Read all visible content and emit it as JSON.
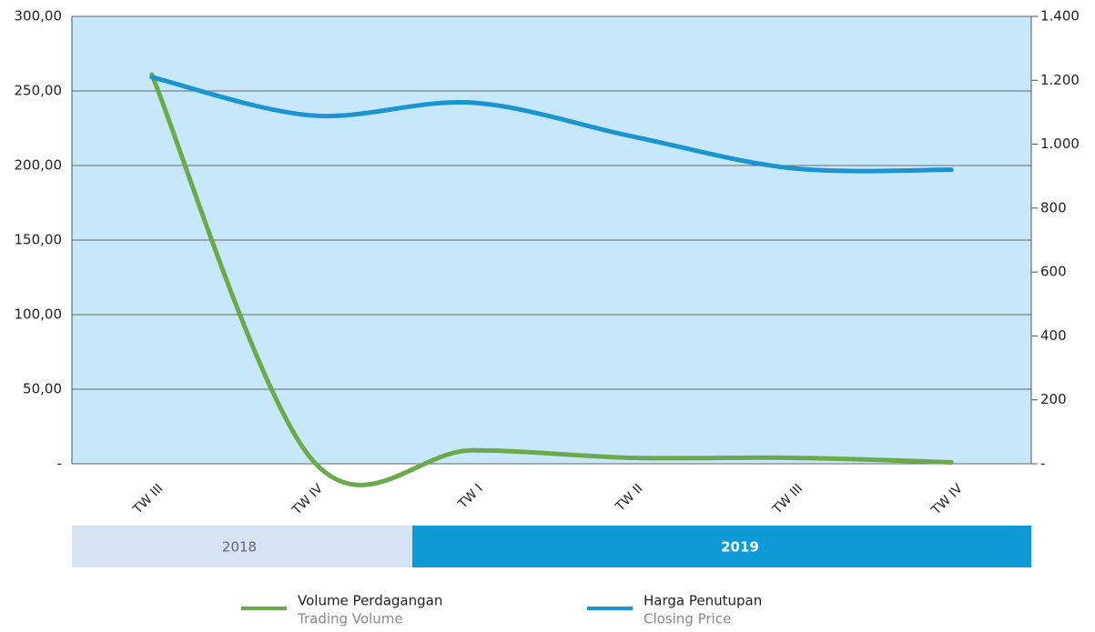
{
  "chart_data": {
    "type": "line",
    "categories": [
      "TW III",
      "TW IV",
      "TW I",
      "TW II",
      "TW III",
      "TW IV"
    ],
    "series": [
      {
        "name": "Volume Perdagangan",
        "name_en": "Trading Volume",
        "color": "#6aaa4a",
        "values": [
          261,
          3,
          9,
          4,
          4,
          1
        ]
      },
      {
        "name": "Harga Penutupan",
        "name_en": "Closing Price",
        "color": "#1b95d2",
        "axis": "y2",
        "values": [
          1210,
          1090,
          1130,
          1025,
          925,
          920
        ]
      }
    ],
    "ylim": [
      0,
      300
    ],
    "yticks": [
      {
        "value": 0,
        "label": "-"
      },
      {
        "value": 50,
        "label": "50,00"
      },
      {
        "value": 100,
        "label": "100,00"
      },
      {
        "value": 150,
        "label": "150,00"
      },
      {
        "value": 200,
        "label": "200,00"
      },
      {
        "value": 250,
        "label": "250,00"
      },
      {
        "value": 300,
        "label": "300,00"
      }
    ],
    "y2lim": [
      0,
      1400
    ],
    "y2ticks": [
      {
        "value": 0,
        "label": "-"
      },
      200,
      400,
      600,
      800,
      {
        "value": 1000,
        "label": "1.000"
      },
      {
        "value": 1200,
        "label": "1.200"
      },
      {
        "value": 1400,
        "label": "1.400"
      }
    ],
    "years": [
      "2018",
      "2019"
    ],
    "grid": true
  }
}
